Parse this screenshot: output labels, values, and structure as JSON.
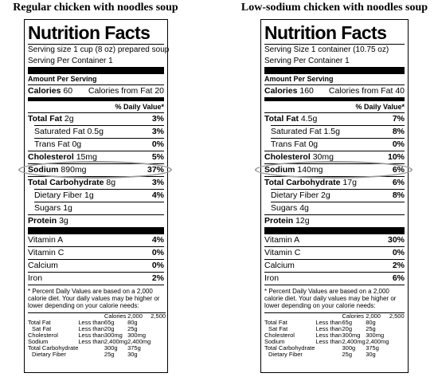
{
  "panels": [
    {
      "heading": "Regular chicken with noodles soup",
      "label": {
        "title": "Nutrition Facts",
        "serving_size": "Serving size 1 cup (8 oz) prepared soup",
        "servings": "Serving Per Container 1",
        "amount": "Amount Per Serving",
        "calories_label": "Calories",
        "calories": "60",
        "fat_calories_label": "Calories from Fat",
        "fat_calories": "20",
        "dv_header": "% Daily Value*",
        "nutrients": [
          {
            "name": "Total Fat",
            "amount": "2g",
            "dv": "3%"
          },
          {
            "name": "Saturated Fat",
            "amount": "0.5g",
            "dv": "3%"
          },
          {
            "name": "Trans Fat",
            "amount": "0g",
            "dv": "0%"
          },
          {
            "name": "Cholesterol",
            "amount": "15mg",
            "dv": "5%"
          },
          {
            "name": "Sodium",
            "amount": "890mg",
            "dv": "37%"
          },
          {
            "name": "Total Carbohydrate",
            "amount": "8g",
            "dv": "3%"
          },
          {
            "name": "Dietary Fiber",
            "amount": "1g",
            "dv": "4%"
          },
          {
            "name": "Sugars",
            "amount": "1g"
          },
          {
            "name": "Protein",
            "amount": "3g"
          }
        ],
        "vitamins": [
          {
            "name": "Vitamin A",
            "dv": "4%"
          },
          {
            "name": "Vitamin C",
            "dv": "0%"
          },
          {
            "name": "Calcium",
            "dv": "0%"
          },
          {
            "name": "Iron",
            "dv": "2%"
          }
        ],
        "footnote": "* Percent Daily Values are based on a 2,000 calorie diet. Your daily values may be higher or lower depending on your calorie needs:",
        "footer_table": {
          "header": [
            "Calories",
            "2,000",
            "2,500"
          ],
          "rows": [
            [
              "Total Fat",
              "Less than",
              "65g",
              "80g"
            ],
            [
              "Sat Fat",
              "Less than",
              "20g",
              "25g"
            ],
            [
              "Cholesterol",
              "Less than",
              "300mg",
              "300mg"
            ],
            [
              "Sodium",
              "Less than",
              "2,400mg",
              "2,400mg"
            ],
            [
              "Total Carbohydrate",
              "300g",
              "375g"
            ],
            [
              "Dietary Fiber",
              "25g",
              "30g"
            ]
          ]
        }
      }
    },
    {
      "heading": "Low-sodium chicken with noodles soup",
      "label": {
        "title": "Nutrition Facts",
        "serving_size": "Serving Size 1 container (10.75 oz)",
        "servings": "Serving Per Container 1",
        "amount": "Amount Per Serving",
        "calories_label": "Calories",
        "calories": "160",
        "fat_calories_label": "Calories from Fat",
        "fat_calories": "40",
        "dv_header": "% Daily Value*",
        "nutrients": [
          {
            "name": "Total Fat",
            "amount": "4.5g",
            "dv": "7%"
          },
          {
            "name": "Saturated Fat",
            "amount": "1.5g",
            "dv": "8%"
          },
          {
            "name": "Trans Fat",
            "amount": "0g",
            "dv": "0%"
          },
          {
            "name": "Cholesterol",
            "amount": "30mg",
            "dv": "10%"
          },
          {
            "name": "Sodium",
            "amount": "140mg",
            "dv": "6%"
          },
          {
            "name": "Total Carbohydrate",
            "amount": "17g",
            "dv": "6%"
          },
          {
            "name": "Dietary Fiber",
            "amount": "2g",
            "dv": "8%"
          },
          {
            "name": "Sugars",
            "amount": "4g"
          },
          {
            "name": "Protein",
            "amount": "12g"
          }
        ],
        "vitamins": [
          {
            "name": "Vitamin A",
            "dv": "30%"
          },
          {
            "name": "Vitamin C",
            "dv": "0%"
          },
          {
            "name": "Calcium",
            "dv": "2%"
          },
          {
            "name": "Iron",
            "dv": "6%"
          }
        ],
        "footnote": "* Percent Daily Values are based on a 2,000 calorie diet. Your daily values may be higher or lower depending on your calorie needs:",
        "footer_table": {
          "header": [
            "Calories",
            "2,000",
            "2,500"
          ],
          "rows": [
            [
              "Total Fat",
              "Less than",
              "65g",
              "80g"
            ],
            [
              "Sat Fat",
              "Less than",
              "20g",
              "25g"
            ],
            [
              "Cholesterol",
              "Less than",
              "300mg",
              "300mg"
            ],
            [
              "Sodium",
              "Less than",
              "2,400mg",
              "2,400mg"
            ],
            [
              "Total Carbohydrate",
              "300g",
              "375g"
            ],
            [
              "Dietary Fiber",
              "25g",
              "30g"
            ]
          ]
        }
      }
    }
  ]
}
